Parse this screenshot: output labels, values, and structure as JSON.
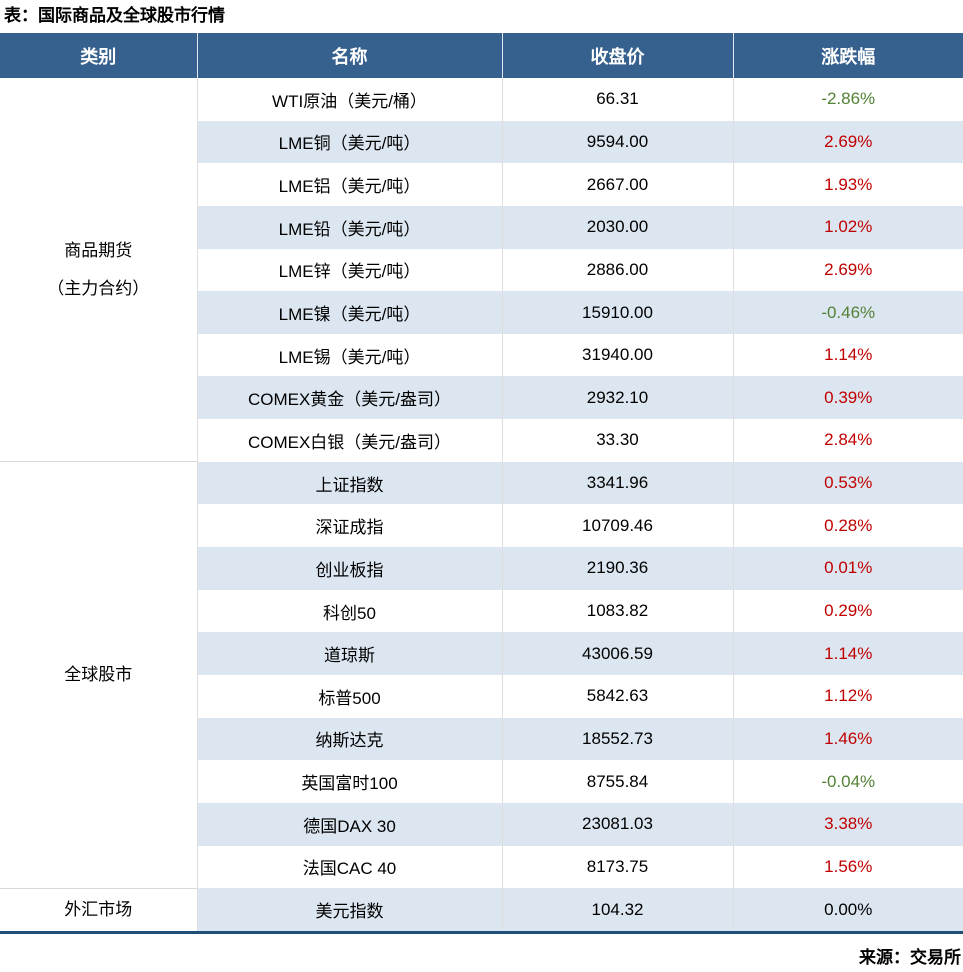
{
  "colors": {
    "header_bg": "#36618E",
    "stripe_bg": "#DCE6F1",
    "up": "#C00000",
    "down": "#538135",
    "flat": "#000000",
    "bottom_rule": "#1F4E79"
  },
  "chart_data": {
    "type": "table",
    "title": "表：国际商品及全球股市行情",
    "source": "来源：交易所",
    "columns": [
      "类别",
      "名称",
      "收盘价",
      "涨跌幅"
    ],
    "sections": [
      {
        "category": "商品期货\n（主力合约）",
        "rows": [
          {
            "name": "WTI原油（美元/桶）",
            "close": "66.31",
            "change": "-2.86%",
            "dir": "down"
          },
          {
            "name": "LME铜（美元/吨）",
            "close": "9594.00",
            "change": "2.69%",
            "dir": "up"
          },
          {
            "name": "LME铝（美元/吨）",
            "close": "2667.00",
            "change": "1.93%",
            "dir": "up"
          },
          {
            "name": "LME铅（美元/吨）",
            "close": "2030.00",
            "change": "1.02%",
            "dir": "up"
          },
          {
            "name": "LME锌（美元/吨）",
            "close": "2886.00",
            "change": "2.69%",
            "dir": "up"
          },
          {
            "name": "LME镍（美元/吨）",
            "close": "15910.00",
            "change": "-0.46%",
            "dir": "down"
          },
          {
            "name": "LME锡（美元/吨）",
            "close": "31940.00",
            "change": "1.14%",
            "dir": "up"
          },
          {
            "name": "COMEX黄金（美元/盎司）",
            "close": "2932.10",
            "change": "0.39%",
            "dir": "up"
          },
          {
            "name": "COMEX白银（美元/盎司）",
            "close": "33.30",
            "change": "2.84%",
            "dir": "up"
          }
        ]
      },
      {
        "category": "全球股市",
        "rows": [
          {
            "name": "上证指数",
            "close": "3341.96",
            "change": "0.53%",
            "dir": "up"
          },
          {
            "name": "深证成指",
            "close": "10709.46",
            "change": "0.28%",
            "dir": "up"
          },
          {
            "name": "创业板指",
            "close": "2190.36",
            "change": "0.01%",
            "dir": "up"
          },
          {
            "name": "科创50",
            "close": "1083.82",
            "change": "0.29%",
            "dir": "up"
          },
          {
            "name": "道琼斯",
            "close": "43006.59",
            "change": "1.14%",
            "dir": "up"
          },
          {
            "name": "标普500",
            "close": "5842.63",
            "change": "1.12%",
            "dir": "up"
          },
          {
            "name": "纳斯达克",
            "close": "18552.73",
            "change": "1.46%",
            "dir": "up"
          },
          {
            "name": "英国富时100",
            "close": "8755.84",
            "change": "-0.04%",
            "dir": "down"
          },
          {
            "name": "德国DAX 30",
            "close": "23081.03",
            "change": "3.38%",
            "dir": "up"
          },
          {
            "name": "法国CAC 40",
            "close": "8173.75",
            "change": "1.56%",
            "dir": "up"
          }
        ]
      },
      {
        "category": "外汇市场",
        "rows": [
          {
            "name": "美元指数",
            "close": "104.32",
            "change": "0.00%",
            "dir": "flat"
          }
        ]
      }
    ]
  }
}
